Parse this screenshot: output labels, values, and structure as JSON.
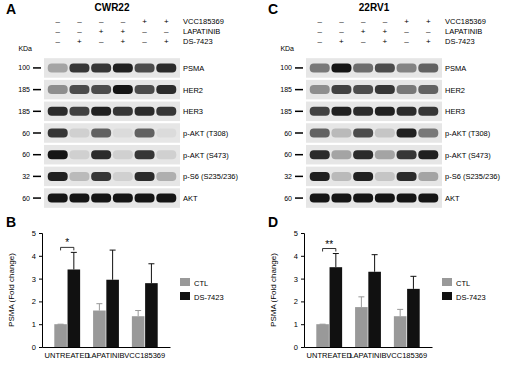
{
  "chart_data": [
    {
      "type": "blot",
      "title": "A",
      "subtitle": "CWR22",
      "unit_label": "KDa",
      "lane_treatments": [
        {
          "name": "VCC185369",
          "values": [
            "–",
            "–",
            "–",
            "–",
            "+",
            "+"
          ]
        },
        {
          "name": "LAPATINIB",
          "values": [
            "–",
            "–",
            "+",
            "+",
            "–",
            "–"
          ]
        },
        {
          "name": "DS-7423",
          "values": [
            "–",
            "+",
            "–",
            "+",
            "–",
            "+"
          ]
        }
      ],
      "rows": [
        {
          "name": "PSMA",
          "kda": 100
        },
        {
          "name": "HER2",
          "kda": 185
        },
        {
          "name": "HER3",
          "kda": 185
        },
        {
          "name": "p-AKT (T308)",
          "kda": 60
        },
        {
          "name": "p-AKT (S473)",
          "kda": 60
        },
        {
          "name": "p-S6 (S235/236)",
          "kda": 32
        },
        {
          "name": "AKT",
          "kda": 60
        }
      ],
      "cells": [
        [
          0.3,
          0.8,
          0.8,
          0.9,
          0.7,
          0.85
        ],
        [
          0.4,
          0.7,
          0.7,
          0.95,
          0.7,
          0.85
        ],
        [
          0.85,
          0.75,
          0.9,
          0.8,
          0.85,
          0.8
        ],
        [
          0.8,
          0.1,
          0.6,
          0.05,
          0.6,
          0.05
        ],
        [
          0.95,
          0.1,
          0.85,
          0.1,
          0.8,
          0.1
        ],
        [
          0.9,
          0.2,
          0.8,
          0.1,
          0.85,
          0.25
        ],
        [
          0.95,
          0.95,
          0.95,
          0.95,
          0.95,
          0.95
        ]
      ],
      "clim": [
        0,
        1
      ]
    },
    {
      "type": "bar",
      "title": "B",
      "categories": [
        "UNTREATED",
        "LAPATINIB",
        "VCC185369"
      ],
      "series": [
        {
          "name": "CTL",
          "color": "#999999",
          "values": [
            1,
            1.6,
            1.35
          ],
          "errors": [
            0,
            0.3,
            0.25
          ]
        },
        {
          "name": "DS-7423",
          "color": "#111111",
          "values": [
            3.4,
            2.95,
            2.8
          ],
          "errors": [
            0.75,
            1.3,
            0.85
          ]
        }
      ],
      "y_label": "PSMA (Fold change)",
      "ylim": [
        0,
        5
      ],
      "yticks": [
        0,
        1,
        2,
        3,
        4,
        5
      ],
      "legend": "right",
      "annotations": [
        "*"
      ]
    },
    {
      "type": "blot",
      "title": "C",
      "subtitle": "22RV1",
      "unit_label": "KDa",
      "lane_treatments": [
        {
          "name": "VCC185369",
          "values": [
            "–",
            "–",
            "–",
            "–",
            "+",
            "+"
          ]
        },
        {
          "name": "LAPATINIB",
          "values": [
            "–",
            "–",
            "+",
            "+",
            "–",
            "–"
          ]
        },
        {
          "name": "DS-7423",
          "values": [
            "–",
            "+",
            "–",
            "+",
            "–",
            "+"
          ]
        }
      ],
      "rows": [
        {
          "name": "PSMA",
          "kda": 100
        },
        {
          "name": "HER2",
          "kda": 185
        },
        {
          "name": "HER3",
          "kda": 185
        },
        {
          "name": "p-AKT (T308)",
          "kda": 60
        },
        {
          "name": "p-AKT (S473)",
          "kda": 60
        },
        {
          "name": "p-S6 (S235/236)",
          "kda": 32
        },
        {
          "name": "AKT",
          "kda": 60
        }
      ],
      "cells": [
        [
          0.5,
          0.95,
          0.55,
          0.7,
          0.45,
          0.6
        ],
        [
          0.4,
          0.75,
          0.7,
          0.8,
          0.5,
          0.6
        ],
        [
          0.75,
          0.9,
          0.85,
          0.9,
          0.85,
          0.8
        ],
        [
          0.6,
          0.2,
          0.7,
          0.15,
          0.9,
          0.5
        ],
        [
          0.85,
          0.3,
          0.85,
          0.3,
          0.8,
          0.9
        ],
        [
          0.9,
          0.2,
          0.9,
          0.15,
          0.85,
          0.3
        ],
        [
          0.95,
          0.95,
          0.95,
          0.95,
          0.95,
          0.95
        ]
      ],
      "clim": [
        0,
        1
      ]
    },
    {
      "type": "bar",
      "title": "D",
      "categories": [
        "UNTREATED",
        "LAPATINIB",
        "VCC185369"
      ],
      "series": [
        {
          "name": "CTL",
          "color": "#999999",
          "values": [
            1,
            1.75,
            1.35
          ],
          "errors": [
            0,
            0.45,
            0.3
          ]
        },
        {
          "name": "DS-7423",
          "color": "#111111",
          "values": [
            3.5,
            3.3,
            2.55
          ],
          "errors": [
            0.6,
            0.75,
            0.55
          ]
        }
      ],
      "y_label": "PSMA (Fold change)",
      "ylim": [
        0,
        5
      ],
      "yticks": [
        0,
        1,
        2,
        3,
        4,
        5
      ],
      "legend": "right",
      "annotations": [
        "**"
      ]
    }
  ]
}
